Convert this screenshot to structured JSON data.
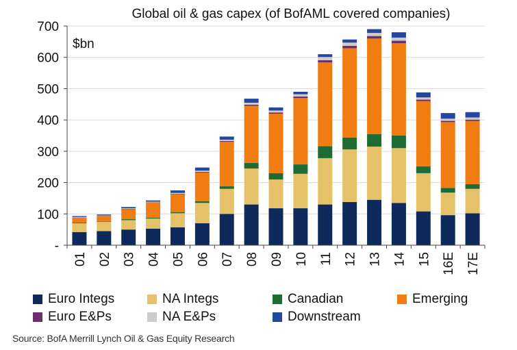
{
  "chart_data": {
    "type": "bar",
    "stacked": true,
    "title": "Global oil & gas capex (of BofAML covered companies)",
    "unit_label": "$bn",
    "ylim": [
      0,
      700
    ],
    "yticks": [
      0,
      100,
      200,
      300,
      400,
      500,
      600,
      700
    ],
    "ytick_labels": [
      "-",
      "100",
      "200",
      "300",
      "400",
      "500",
      "600",
      "700"
    ],
    "grid": true,
    "legend_position": "bottom",
    "categories": [
      "01",
      "02",
      "03",
      "04",
      "05",
      "06",
      "07",
      "08",
      "09",
      "10",
      "11",
      "12",
      "13",
      "14",
      "15",
      "16E",
      "17E"
    ],
    "series": [
      {
        "name": "Euro Integs",
        "color": "#0d2a5a",
        "values": [
          42,
          45,
          50,
          53,
          57,
          70,
          100,
          130,
          118,
          118,
          130,
          138,
          145,
          135,
          108,
          96,
          102
        ]
      },
      {
        "name": "NA Integs",
        "color": "#e5c26a",
        "values": [
          28,
          30,
          30,
          32,
          45,
          65,
          80,
          115,
          92,
          110,
          148,
          168,
          170,
          175,
          122,
          72,
          78
        ]
      },
      {
        "name": "Canadian",
        "color": "#1e6b34",
        "values": [
          2,
          2,
          3,
          3,
          3,
          5,
          8,
          18,
          20,
          30,
          38,
          38,
          40,
          40,
          22,
          15,
          15
        ]
      },
      {
        "name": "Emerging",
        "color": "#f07c12",
        "values": [
          15,
          15,
          32,
          48,
          58,
          92,
          142,
          182,
          190,
          212,
          268,
          285,
          305,
          295,
          208,
          210,
          202
        ]
      },
      {
        "name": "Euro E&Ps",
        "color": "#6b2f6e",
        "values": [
          1,
          1,
          1,
          1,
          1,
          2,
          3,
          4,
          4,
          5,
          7,
          8,
          8,
          8,
          5,
          4,
          4
        ]
      },
      {
        "name": "NA E&Ps",
        "color": "#cfcbc6",
        "values": [
          2,
          2,
          2,
          2,
          3,
          4,
          4,
          6,
          6,
          7,
          10,
          10,
          10,
          10,
          7,
          7,
          7
        ]
      },
      {
        "name": "Downstream",
        "color": "#2447a0",
        "values": [
          3,
          3,
          4,
          4,
          8,
          10,
          10,
          13,
          10,
          8,
          9,
          10,
          12,
          17,
          16,
          18,
          17
        ]
      }
    ],
    "source": "Source: BofA Merrill Lynch Oil & Gas Equity Research"
  }
}
